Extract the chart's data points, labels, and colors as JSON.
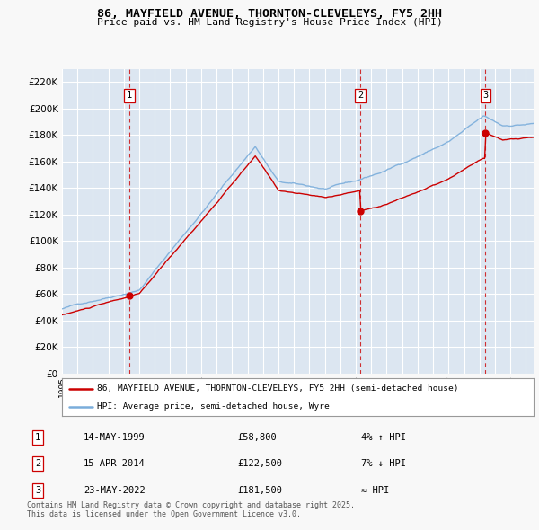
{
  "title": "86, MAYFIELD AVENUE, THORNTON-CLEVELEYS, FY5 2HH",
  "subtitle": "Price paid vs. HM Land Registry's House Price Index (HPI)",
  "xlim_start": 1995.0,
  "xlim_end": 2025.5,
  "ylim": [
    0,
    230000
  ],
  "yticks": [
    0,
    20000,
    40000,
    60000,
    80000,
    100000,
    120000,
    140000,
    160000,
    180000,
    200000,
    220000
  ],
  "sale_dates": [
    1999.37,
    2014.29,
    2022.38
  ],
  "sale_prices": [
    58800,
    122500,
    181500
  ],
  "sale_labels": [
    "1",
    "2",
    "3"
  ],
  "legend_house": "86, MAYFIELD AVENUE, THORNTON-CLEVELEYS, FY5 2HH (semi-detached house)",
  "legend_hpi": "HPI: Average price, semi-detached house, Wyre",
  "table_rows": [
    {
      "label": "1",
      "date": "14-MAY-1999",
      "price": "£58,800",
      "change": "4% ↑ HPI"
    },
    {
      "label": "2",
      "date": "15-APR-2014",
      "price": "£122,500",
      "change": "7% ↓ HPI"
    },
    {
      "label": "3",
      "date": "23-MAY-2022",
      "price": "£181,500",
      "change": "≈ HPI"
    }
  ],
  "footer": "Contains HM Land Registry data © Crown copyright and database right 2025.\nThis data is licensed under the Open Government Licence v3.0.",
  "house_color": "#cc0000",
  "hpi_color": "#7aaddb",
  "plot_bg": "#dce6f1",
  "grid_color": "#ffffff",
  "vline_color": "#cc0000",
  "fig_bg": "#f8f8f8"
}
